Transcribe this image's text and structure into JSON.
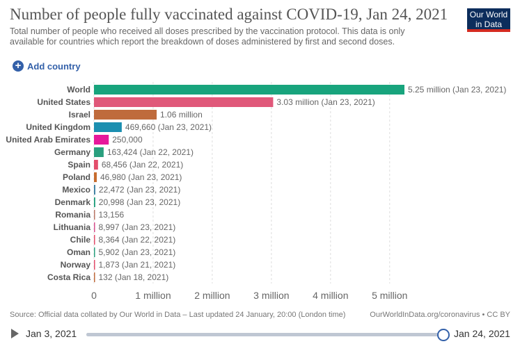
{
  "header": {
    "title": "Number of people fully vaccinated against COVID-19, Jan 24, 2021",
    "subtitle": "Total number of people who received all doses prescribed by the vaccination protocol. This data is only available for countries which report the breakdown of doses administered by first and second doses."
  },
  "logo": {
    "line1": "Our World",
    "line2": "in Data"
  },
  "controls": {
    "add_country_label": "Add country"
  },
  "chart_data": {
    "type": "bar",
    "orientation": "horizontal",
    "title": "Number of people fully vaccinated against COVID-19, Jan 24, 2021",
    "xlim": [
      0,
      5250000
    ],
    "x_ticks": [
      0,
      1000000,
      2000000,
      3000000,
      4000000,
      5000000
    ],
    "x_tick_labels": [
      "0",
      "1 million",
      "2 million",
      "3 million",
      "4 million",
      "5 million"
    ],
    "grid": "vertical-dashed",
    "categories": [
      "World",
      "United States",
      "Israel",
      "United Kingdom",
      "United Arab Emirates",
      "Germany",
      "Spain",
      "Poland",
      "Mexico",
      "Denmark",
      "Romania",
      "Lithuania",
      "Chile",
      "Oman",
      "Norway",
      "Costa Rica"
    ],
    "values": [
      5250000,
      3030000,
      1060000,
      469660,
      250000,
      163424,
      68456,
      46980,
      22472,
      20998,
      13156,
      8997,
      8364,
      5902,
      1873,
      132
    ],
    "value_labels": [
      "5.25 million (Jan 23, 2021)",
      "3.03 million (Jan 23, 2021)",
      "1.06 million",
      "469,660 (Jan 23, 2021)",
      "250,000",
      "163,424 (Jan 22, 2021)",
      "68,456 (Jan 22, 2021)",
      "46,980 (Jan 23, 2021)",
      "22,472 (Jan 23, 2021)",
      "20,998 (Jan 23, 2021)",
      "13,156",
      "8,997 (Jan 23, 2021)",
      "8,364 (Jan 22, 2021)",
      "5,902 (Jan 23, 2021)",
      "1,873 (Jan 21, 2021)",
      "132 (Jan 18, 2021)"
    ],
    "colors": [
      "#18a47d",
      "#e0587a",
      "#bf6b3c",
      "#1c8fb0",
      "#e6189b",
      "#2a9f7e",
      "#e34e6b",
      "#c76c2e",
      "#3d7fa1",
      "#189b78",
      "#b97767",
      "#d6508e",
      "#e34e6b",
      "#2a9f7e",
      "#e34e6b",
      "#bf6b3c"
    ]
  },
  "footer": {
    "source": "Source: Official data collated by Our World in Data – Last updated 24 January, 20:00 (London time)",
    "url": "OurWorldInData.org/coronavirus • CC BY"
  },
  "timeline": {
    "start_label": "Jan 3, 2021",
    "end_label": "Jan 24, 2021",
    "selected_position": 1.0
  }
}
